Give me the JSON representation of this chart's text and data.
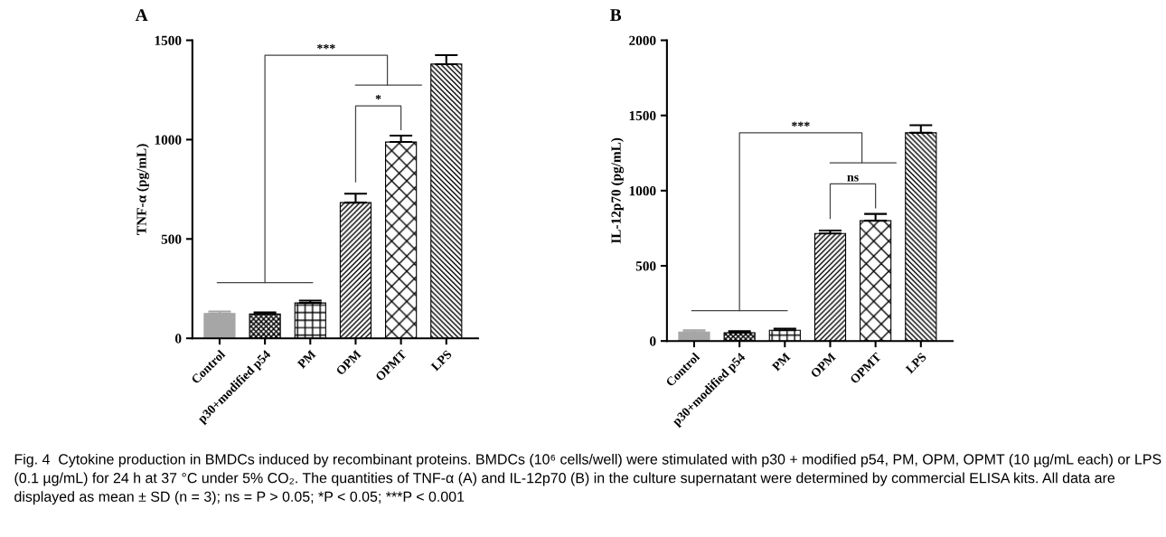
{
  "chart_data": [
    {
      "type": "bar",
      "title": "A",
      "ylabel": "TNF-α (pg/mL)",
      "categories": [
        "Control",
        "p30+modified p54",
        "PM",
        "OPM",
        "OPMT",
        "LPS"
      ],
      "values": [
        125,
        122,
        178,
        683,
        988,
        1380
      ],
      "errors": [
        10,
        8,
        12,
        45,
        32,
        45
      ],
      "colors": [
        "#a6a6a6",
        "#000000",
        "#000000",
        "#000000",
        "#000000",
        "#000000"
      ],
      "ylim": [
        0,
        1500
      ],
      "yticks": [
        0,
        500,
        1000,
        1500
      ],
      "grid": false,
      "legend": false,
      "annotations": [
        "***",
        "*"
      ]
    },
    {
      "type": "bar",
      "title": "B",
      "ylabel": "IL-12p70 (pg/mL)",
      "categories": [
        "Control",
        "p30+modified p54",
        "PM",
        "OPM",
        "OPMT",
        "LPS"
      ],
      "values": [
        60,
        55,
        72,
        715,
        800,
        1385
      ],
      "errors": [
        12,
        11,
        10,
        20,
        45,
        50
      ],
      "colors": [
        "#a6a6a6",
        "#000000",
        "#000000",
        "#000000",
        "#000000",
        "#000000"
      ],
      "ylim": [
        0,
        2000
      ],
      "yticks": [
        0,
        500,
        1000,
        1500,
        2000
      ],
      "grid": false,
      "legend": false,
      "annotations": [
        "***",
        "ns",
        "Fig. 4  Cytokine production in BMDCs induced by recombinant proteins. BMDCs (10⁶ cells/well) were stimulated with p30 + modified p54, PM, OPM, OPMT (10 µg/mL each) or LPS (0.1 µg/mL) for 24 h at 37 °C under 5% CO₂. The quantities of TNF-α (A) and IL-12p70 (B) in the culture supernatant were determined by commercial ELISA kits. All data are displayed as mean ± SD (n = 3); ns = P > 0.05; *P < 0.05; ***P < 0.001"
      ]
    }
  ]
}
